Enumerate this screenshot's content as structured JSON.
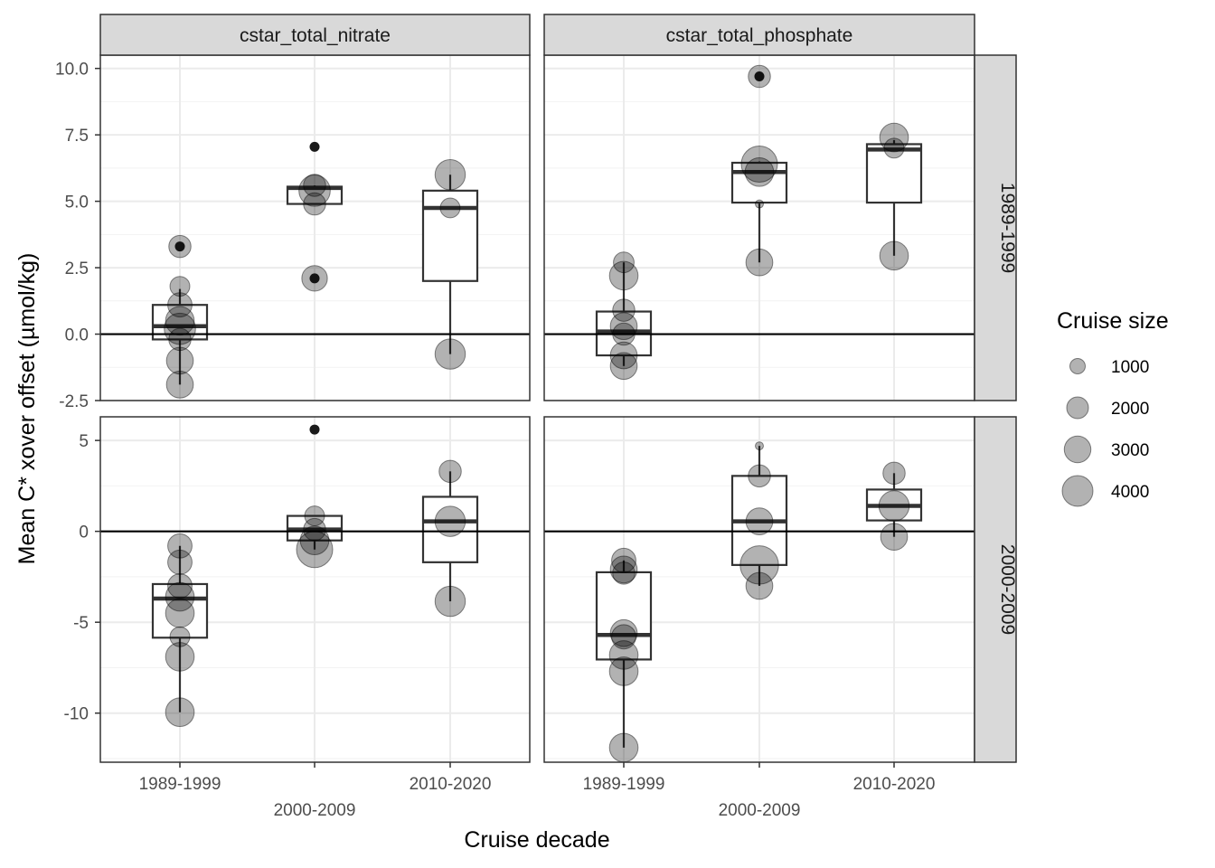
{
  "chart_data": {
    "type": "boxplot",
    "xlabel": "Cruise decade",
    "ylabel": "Mean C* xover offset (µmol/kg)",
    "categories": [
      "1989-1999",
      "2000-2009",
      "2010-2020"
    ],
    "facet_cols": [
      "cstar_total_nitrate",
      "cstar_total_phosphate"
    ],
    "facet_rows": [
      "1989-1999",
      "2000-2009"
    ],
    "rows": [
      {
        "ylim": [
          -2.5,
          10.5
        ],
        "ticks": [
          -2.5,
          0.0,
          2.5,
          5.0,
          7.5,
          10.0
        ],
        "tick_labels": [
          "-2.5",
          "0.0",
          "2.5",
          "5.0",
          "7.5",
          "10.0"
        ]
      },
      {
        "ylim": [
          -12.7,
          6.3
        ],
        "ticks": [
          -10,
          -5,
          0,
          5
        ],
        "tick_labels": [
          "-10",
          "-5",
          "0",
          "5"
        ]
      }
    ],
    "panels": [
      {
        "row": 0,
        "col": 0,
        "boxes": [
          {
            "cat": 0,
            "q1": -0.2,
            "med": 0.3,
            "q3": 1.1,
            "lo": -1.9,
            "hi": 1.7,
            "outliers": [
              3.3
            ]
          },
          {
            "cat": 1,
            "q1": 4.9,
            "med": 5.5,
            "q3": 5.55,
            "lo": 4.9,
            "hi": 5.6,
            "outliers": [
              7.05,
              2.1
            ]
          },
          {
            "cat": 2,
            "q1": 2.0,
            "med": 4.75,
            "q3": 5.4,
            "lo": -0.75,
            "hi": 6.0,
            "outliers": []
          }
        ],
        "points": [
          {
            "cat": 0,
            "y": 3.3,
            "size": 1500
          },
          {
            "cat": 0,
            "y": 1.8,
            "size": 1200
          },
          {
            "cat": 0,
            "y": 1.1,
            "size": 1800
          },
          {
            "cat": 0,
            "y": 0.5,
            "size": 2500
          },
          {
            "cat": 0,
            "y": 0.2,
            "size": 3000
          },
          {
            "cat": 0,
            "y": -0.2,
            "size": 1500
          },
          {
            "cat": 0,
            "y": -1.0,
            "size": 2200
          },
          {
            "cat": 0,
            "y": -1.9,
            "size": 2200
          },
          {
            "cat": 1,
            "y": 5.6,
            "size": 1500
          },
          {
            "cat": 1,
            "y": 5.4,
            "size": 3000
          },
          {
            "cat": 1,
            "y": 4.9,
            "size": 1500
          },
          {
            "cat": 1,
            "y": 2.1,
            "size": 2000
          },
          {
            "cat": 2,
            "y": 6.0,
            "size": 2800
          },
          {
            "cat": 2,
            "y": 4.75,
            "size": 1200
          },
          {
            "cat": 2,
            "y": -0.75,
            "size": 2800
          }
        ]
      },
      {
        "row": 0,
        "col": 1,
        "boxes": [
          {
            "cat": 0,
            "q1": -0.8,
            "med": 0.1,
            "q3": 0.85,
            "lo": -1.2,
            "hi": 2.7,
            "outliers": []
          },
          {
            "cat": 1,
            "q1": 4.95,
            "med": 6.1,
            "q3": 6.45,
            "lo": 2.7,
            "hi": 6.5,
            "outliers": [
              9.7
            ]
          },
          {
            "cat": 2,
            "q1": 4.95,
            "med": 6.95,
            "q3": 7.15,
            "lo": 2.95,
            "hi": 7.3,
            "outliers": []
          }
        ],
        "points": [
          {
            "cat": 0,
            "y": 2.7,
            "size": 1300
          },
          {
            "cat": 0,
            "y": 2.2,
            "size": 2500
          },
          {
            "cat": 0,
            "y": 0.9,
            "size": 1500
          },
          {
            "cat": 0,
            "y": 0.3,
            "size": 2200
          },
          {
            "cat": 0,
            "y": 0.0,
            "size": 1500
          },
          {
            "cat": 0,
            "y": -0.8,
            "size": 2200
          },
          {
            "cat": 0,
            "y": -1.2,
            "size": 2200
          },
          {
            "cat": 1,
            "y": 9.7,
            "size": 1500
          },
          {
            "cat": 1,
            "y": 6.4,
            "size": 4000
          },
          {
            "cat": 1,
            "y": 6.1,
            "size": 2500
          },
          {
            "cat": 1,
            "y": 4.9,
            "size": 200
          },
          {
            "cat": 1,
            "y": 2.7,
            "size": 2200
          },
          {
            "cat": 2,
            "y": 7.4,
            "size": 2500
          },
          {
            "cat": 2,
            "y": 7.0,
            "size": 1200
          },
          {
            "cat": 2,
            "y": 2.95,
            "size": 2500
          }
        ]
      },
      {
        "row": 1,
        "col": 0,
        "boxes": [
          {
            "cat": 0,
            "q1": -5.85,
            "med": -3.7,
            "q3": -2.9,
            "lo": -9.95,
            "hi": -0.8,
            "outliers": []
          },
          {
            "cat": 1,
            "q1": -0.5,
            "med": 0.1,
            "q3": 0.85,
            "lo": -1.0,
            "hi": 0.85,
            "outliers": [
              5.6
            ]
          },
          {
            "cat": 2,
            "q1": -1.7,
            "med": 0.55,
            "q3": 1.9,
            "lo": -3.85,
            "hi": 3.3,
            "outliers": []
          }
        ],
        "points": [
          {
            "cat": 0,
            "y": -0.8,
            "size": 1800
          },
          {
            "cat": 0,
            "y": -1.7,
            "size": 1800
          },
          {
            "cat": 0,
            "y": -3.0,
            "size": 1800
          },
          {
            "cat": 0,
            "y": -3.6,
            "size": 2500
          },
          {
            "cat": 0,
            "y": -4.5,
            "size": 2500
          },
          {
            "cat": 0,
            "y": -5.8,
            "size": 1200
          },
          {
            "cat": 0,
            "y": -6.9,
            "size": 2500
          },
          {
            "cat": 0,
            "y": -9.95,
            "size": 2500
          },
          {
            "cat": 1,
            "y": 0.85,
            "size": 1200
          },
          {
            "cat": 1,
            "y": 0.1,
            "size": 1500
          },
          {
            "cat": 1,
            "y": -0.5,
            "size": 2500
          },
          {
            "cat": 1,
            "y": -1.0,
            "size": 4000
          },
          {
            "cat": 2,
            "y": 3.3,
            "size": 1500
          },
          {
            "cat": 2,
            "y": 0.55,
            "size": 2800
          },
          {
            "cat": 2,
            "y": -3.85,
            "size": 2800
          }
        ]
      },
      {
        "row": 1,
        "col": 1,
        "boxes": [
          {
            "cat": 0,
            "q1": -7.05,
            "med": -5.7,
            "q3": -2.25,
            "lo": -11.9,
            "hi": -1.6,
            "outliers": []
          },
          {
            "cat": 1,
            "q1": -1.85,
            "med": 0.55,
            "q3": 3.05,
            "lo": -3.0,
            "hi": 4.7,
            "outliers": []
          },
          {
            "cat": 2,
            "q1": 0.6,
            "med": 1.4,
            "q3": 2.3,
            "lo": -0.3,
            "hi": 3.2,
            "outliers": []
          }
        ],
        "points": [
          {
            "cat": 0,
            "y": -1.6,
            "size": 1800
          },
          {
            "cat": 0,
            "y": -2.1,
            "size": 2200
          },
          {
            "cat": 0,
            "y": -2.3,
            "size": 1500
          },
          {
            "cat": 0,
            "y": -5.6,
            "size": 2200
          },
          {
            "cat": 0,
            "y": -5.8,
            "size": 1800
          },
          {
            "cat": 0,
            "y": -6.8,
            "size": 2500
          },
          {
            "cat": 0,
            "y": -7.7,
            "size": 2500
          },
          {
            "cat": 0,
            "y": -11.9,
            "size": 2500
          },
          {
            "cat": 1,
            "y": 4.7,
            "size": 200
          },
          {
            "cat": 1,
            "y": 3.05,
            "size": 1500
          },
          {
            "cat": 1,
            "y": 0.55,
            "size": 2200
          },
          {
            "cat": 1,
            "y": -1.85,
            "size": 4500
          },
          {
            "cat": 1,
            "y": -3.0,
            "size": 2200
          },
          {
            "cat": 2,
            "y": 3.2,
            "size": 1500
          },
          {
            "cat": 2,
            "y": 1.4,
            "size": 2800
          },
          {
            "cat": 2,
            "y": -0.3,
            "size": 2200
          }
        ]
      }
    ],
    "legend": {
      "title": "Cruise size",
      "entries": [
        {
          "label": "1000",
          "size": 1000
        },
        {
          "label": "2000",
          "size": 2000
        },
        {
          "label": "3000",
          "size": 3000
        },
        {
          "label": "4000",
          "size": 4000
        }
      ]
    }
  }
}
